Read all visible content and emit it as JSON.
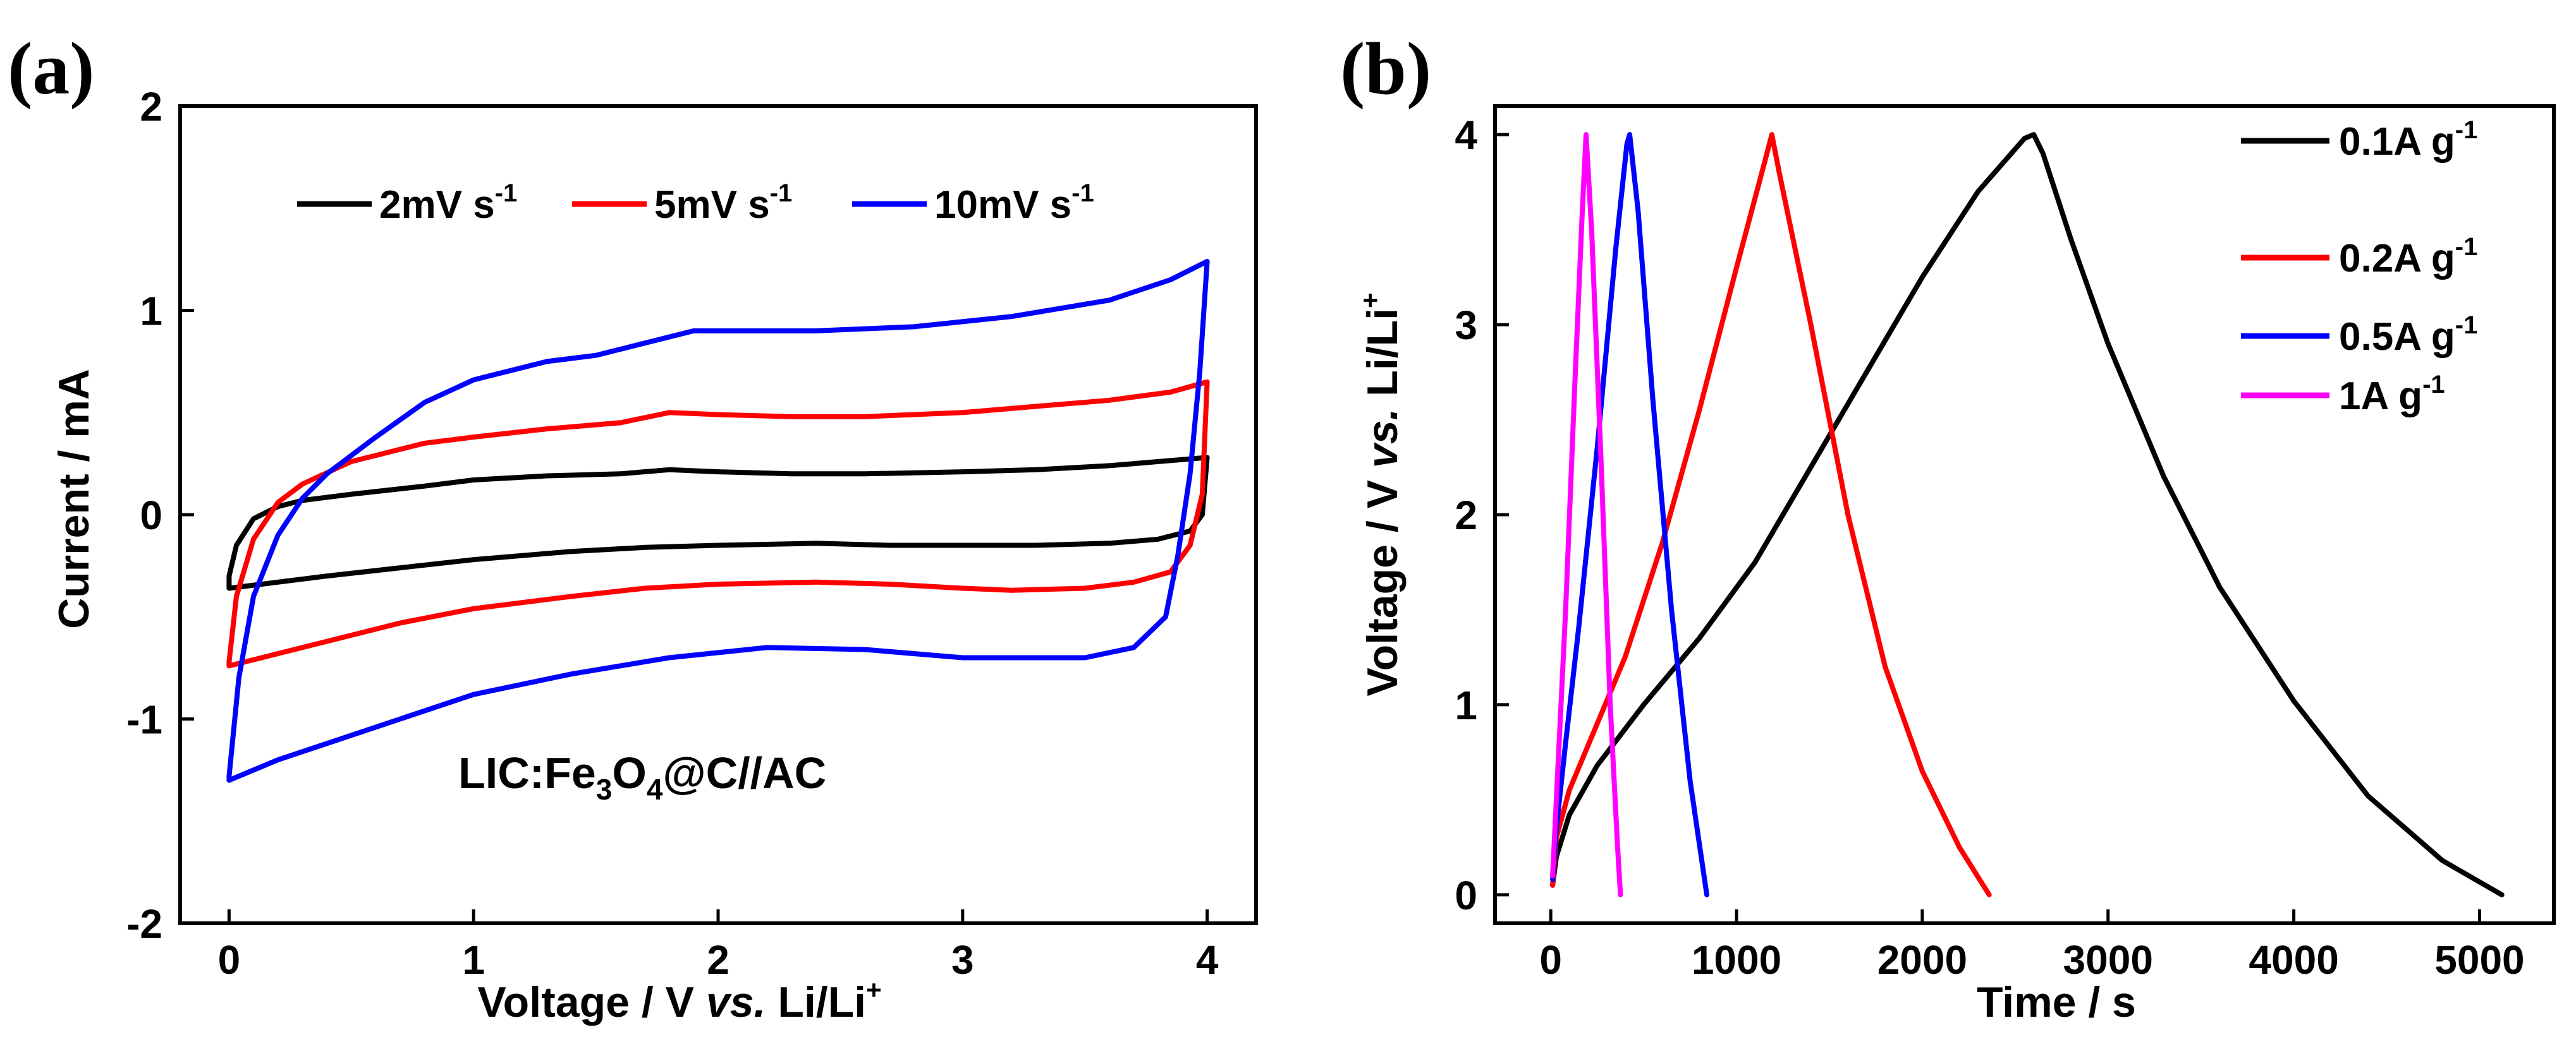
{
  "chart_data": [
    {
      "panel": "(a)",
      "type": "line",
      "xlabel": "Voltage / V",
      "xlabel_italic": "vs.",
      "xlabel_tail": "Li/Li",
      "xlabel_sup": "+",
      "ylabel": "Current / mA",
      "xlim": [
        -0.2,
        4.2
      ],
      "ylim": [
        -2,
        2
      ],
      "xticks": [
        "0",
        "1",
        "2",
        "3",
        "4"
      ],
      "yticks": [
        "-2",
        "-1",
        "0",
        "1",
        "2"
      ],
      "annotation": {
        "parts": [
          {
            "t": "LIC:Fe"
          },
          {
            "t": "3",
            "sub": true
          },
          {
            "t": "O"
          },
          {
            "t": "4",
            "sub": true
          },
          {
            "t": "@C//AC"
          }
        ]
      },
      "series": [
        {
          "name": "2mV s",
          "sup": "-1",
          "color": "#000000",
          "upper": [
            [
              0.0,
              -0.3
            ],
            [
              0.03,
              -0.15
            ],
            [
              0.1,
              -0.02
            ],
            [
              0.2,
              0.04
            ],
            [
              0.3,
              0.07
            ],
            [
              0.5,
              0.1
            ],
            [
              0.8,
              0.14
            ],
            [
              1.0,
              0.17
            ],
            [
              1.3,
              0.19
            ],
            [
              1.6,
              0.2
            ],
            [
              1.8,
              0.22
            ],
            [
              2.0,
              0.21
            ],
            [
              2.3,
              0.2
            ],
            [
              2.6,
              0.2
            ],
            [
              3.0,
              0.21
            ],
            [
              3.3,
              0.22
            ],
            [
              3.6,
              0.24
            ],
            [
              3.8,
              0.26
            ],
            [
              4.0,
              0.28
            ]
          ],
          "lower": [
            [
              4.0,
              0.28
            ],
            [
              3.98,
              0.0
            ],
            [
              3.93,
              -0.08
            ],
            [
              3.8,
              -0.12
            ],
            [
              3.6,
              -0.14
            ],
            [
              3.3,
              -0.15
            ],
            [
              3.0,
              -0.15
            ],
            [
              2.7,
              -0.15
            ],
            [
              2.4,
              -0.14
            ],
            [
              2.0,
              -0.15
            ],
            [
              1.7,
              -0.16
            ],
            [
              1.4,
              -0.18
            ],
            [
              1.0,
              -0.22
            ],
            [
              0.7,
              -0.26
            ],
            [
              0.4,
              -0.3
            ],
            [
              0.2,
              -0.33
            ],
            [
              0.0,
              -0.36
            ],
            [
              0.0,
              -0.3
            ]
          ]
        },
        {
          "name": "5mV s",
          "sup": "-1",
          "color": "#ff0000",
          "upper": [
            [
              0.0,
              -0.72
            ],
            [
              0.03,
              -0.4
            ],
            [
              0.1,
              -0.12
            ],
            [
              0.2,
              0.06
            ],
            [
              0.3,
              0.15
            ],
            [
              0.5,
              0.26
            ],
            [
              0.8,
              0.35
            ],
            [
              1.0,
              0.38
            ],
            [
              1.3,
              0.42
            ],
            [
              1.6,
              0.45
            ],
            [
              1.8,
              0.5
            ],
            [
              2.0,
              0.49
            ],
            [
              2.3,
              0.48
            ],
            [
              2.6,
              0.48
            ],
            [
              3.0,
              0.5
            ],
            [
              3.3,
              0.53
            ],
            [
              3.6,
              0.56
            ],
            [
              3.85,
              0.6
            ],
            [
              4.0,
              0.65
            ]
          ],
          "lower": [
            [
              4.0,
              0.65
            ],
            [
              3.98,
              0.1
            ],
            [
              3.93,
              -0.15
            ],
            [
              3.85,
              -0.28
            ],
            [
              3.7,
              -0.33
            ],
            [
              3.5,
              -0.36
            ],
            [
              3.2,
              -0.37
            ],
            [
              3.0,
              -0.36
            ],
            [
              2.7,
              -0.34
            ],
            [
              2.4,
              -0.33
            ],
            [
              2.0,
              -0.34
            ],
            [
              1.7,
              -0.36
            ],
            [
              1.4,
              -0.4
            ],
            [
              1.0,
              -0.46
            ],
            [
              0.7,
              -0.53
            ],
            [
              0.4,
              -0.62
            ],
            [
              0.2,
              -0.68
            ],
            [
              0.0,
              -0.74
            ],
            [
              0.0,
              -0.72
            ]
          ]
        },
        {
          "name": "10mV s",
          "sup": "-1",
          "color": "#0000ff",
          "upper": [
            [
              0.0,
              -1.28
            ],
            [
              0.04,
              -0.8
            ],
            [
              0.1,
              -0.4
            ],
            [
              0.2,
              -0.1
            ],
            [
              0.3,
              0.08
            ],
            [
              0.4,
              0.2
            ],
            [
              0.6,
              0.38
            ],
            [
              0.8,
              0.55
            ],
            [
              1.0,
              0.66
            ],
            [
              1.3,
              0.75
            ],
            [
              1.5,
              0.78
            ],
            [
              1.7,
              0.84
            ],
            [
              1.9,
              0.9
            ],
            [
              2.1,
              0.9
            ],
            [
              2.4,
              0.9
            ],
            [
              2.8,
              0.92
            ],
            [
              3.2,
              0.97
            ],
            [
              3.6,
              1.05
            ],
            [
              3.85,
              1.15
            ],
            [
              4.0,
              1.24
            ]
          ],
          "lower": [
            [
              4.0,
              1.24
            ],
            [
              3.97,
              0.7
            ],
            [
              3.93,
              0.2
            ],
            [
              3.88,
              -0.2
            ],
            [
              3.83,
              -0.5
            ],
            [
              3.7,
              -0.65
            ],
            [
              3.5,
              -0.7
            ],
            [
              3.2,
              -0.7
            ],
            [
              3.0,
              -0.7
            ],
            [
              2.6,
              -0.66
            ],
            [
              2.2,
              -0.65
            ],
            [
              1.8,
              -0.7
            ],
            [
              1.4,
              -0.78
            ],
            [
              1.0,
              -0.88
            ],
            [
              0.7,
              -1.0
            ],
            [
              0.4,
              -1.12
            ],
            [
              0.2,
              -1.2
            ],
            [
              0.0,
              -1.3
            ],
            [
              0.0,
              -1.28
            ]
          ]
        }
      ]
    },
    {
      "panel": "(b)",
      "type": "line",
      "xlabel": "Time / s",
      "ylabel": "Voltage / V",
      "ylabel_italic": "vs.",
      "ylabel_tail": "Li/Li",
      "ylabel_sup": "+",
      "xlim": [
        -300,
        5400
      ],
      "ylim": [
        -0.15,
        4.15
      ],
      "xticks": [
        "0",
        "1000",
        "2000",
        "3000",
        "4000",
        "5000"
      ],
      "yticks": [
        "0",
        "1",
        "2",
        "3",
        "4"
      ],
      "series": [
        {
          "name": "0.1A g",
          "sup": "-1",
          "color": "#000000",
          "points": [
            [
              10,
              0.05
            ],
            [
              30,
              0.2
            ],
            [
              100,
              0.42
            ],
            [
              250,
              0.68
            ],
            [
              500,
              1.0
            ],
            [
              800,
              1.35
            ],
            [
              1100,
              1.75
            ],
            [
              1400,
              2.25
            ],
            [
              1700,
              2.75
            ],
            [
              2000,
              3.25
            ],
            [
              2300,
              3.7
            ],
            [
              2550,
              3.98
            ],
            [
              2600,
              4.0
            ],
            [
              2650,
              3.9
            ],
            [
              2800,
              3.45
            ],
            [
              3000,
              2.9
            ],
            [
              3300,
              2.2
            ],
            [
              3600,
              1.62
            ],
            [
              4000,
              1.02
            ],
            [
              4400,
              0.52
            ],
            [
              4800,
              0.18
            ],
            [
              5120,
              0.0
            ]
          ]
        },
        {
          "name": "0.2A g",
          "sup": "-1",
          "color": "#ff0000",
          "points": [
            [
              10,
              0.05
            ],
            [
              30,
              0.3
            ],
            [
              100,
              0.55
            ],
            [
              250,
              0.9
            ],
            [
              400,
              1.25
            ],
            [
              600,
              1.85
            ],
            [
              800,
              2.55
            ],
            [
              1000,
              3.3
            ],
            [
              1150,
              3.85
            ],
            [
              1190,
              4.0
            ],
            [
              1230,
              3.8
            ],
            [
              1400,
              3.0
            ],
            [
              1600,
              2.0
            ],
            [
              1800,
              1.2
            ],
            [
              2000,
              0.65
            ],
            [
              2200,
              0.25
            ],
            [
              2360,
              0.0
            ]
          ]
        },
        {
          "name": "0.5A g",
          "sup": "-1",
          "color": "#0000ff",
          "points": [
            [
              10,
              0.08
            ],
            [
              30,
              0.35
            ],
            [
              80,
              0.8
            ],
            [
              150,
              1.4
            ],
            [
              250,
              2.35
            ],
            [
              350,
              3.4
            ],
            [
              410,
              3.95
            ],
            [
              425,
              4.0
            ],
            [
              470,
              3.6
            ],
            [
              550,
              2.6
            ],
            [
              650,
              1.5
            ],
            [
              750,
              0.6
            ],
            [
              840,
              0.0
            ]
          ]
        },
        {
          "name": "1A g",
          "sup": "-1",
          "color": "#ff00ff",
          "points": [
            [
              10,
              0.1
            ],
            [
              30,
              0.5
            ],
            [
              80,
              1.5
            ],
            [
              130,
              2.7
            ],
            [
              170,
              3.6
            ],
            [
              190,
              4.0
            ],
            [
              220,
              3.5
            ],
            [
              270,
              2.3
            ],
            [
              320,
              1.0
            ],
            [
              360,
              0.25
            ],
            [
              375,
              0.0
            ]
          ]
        }
      ]
    }
  ]
}
